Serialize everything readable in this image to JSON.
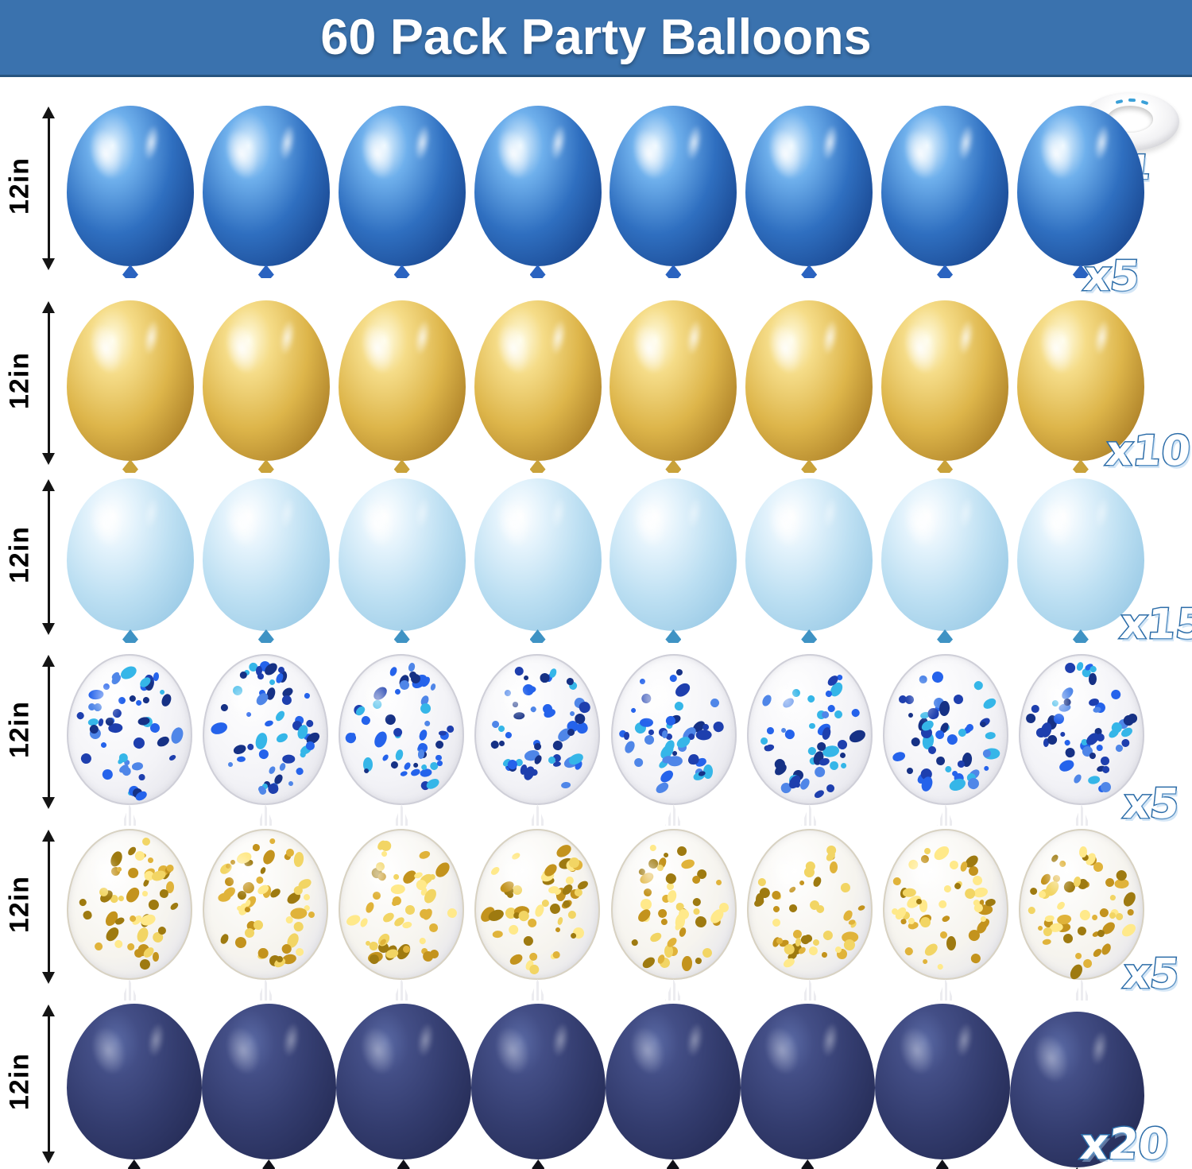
{
  "header": {
    "title": "60 Pack Party Balloons"
  },
  "ribbon_roll": {
    "icon": "white-ribbon-roll-icon",
    "count_label": "x1"
  },
  "rows": [
    {
      "name": "metallic-blue-balloons",
      "style": "metallic-blue",
      "balloon_count": 8,
      "size_label": "12in",
      "count_label": "x5"
    },
    {
      "name": "metallic-gold-balloons",
      "style": "metallic-gold",
      "balloon_count": 8,
      "size_label": "12in",
      "count_label": "x10"
    },
    {
      "name": "pearl-light-blue-balloons",
      "style": "pearl-light-blue",
      "balloon_count": 8,
      "size_label": "12in",
      "count_label": "x15"
    },
    {
      "name": "blue-confetti-balloons",
      "style": "confetti-blue",
      "balloon_count": 8,
      "size_label": "12in",
      "count_label": "x5"
    },
    {
      "name": "gold-confetti-balloons",
      "style": "confetti-gold",
      "balloon_count": 8,
      "size_label": "12in",
      "count_label": "x5"
    },
    {
      "name": "navy-blue-balloons",
      "style": "navy",
      "balloon_count": 8,
      "size_label": "12in",
      "count_label": "x20"
    }
  ],
  "colors": {
    "banner_bg": "#3a72ae",
    "banner_border": "#27547f",
    "banner_text": "#ffffff",
    "count_label_fill": "#ffffff",
    "count_label_stroke": "#2b6ca8",
    "measure_text": "#000000",
    "palettes": {
      "metallic-blue": {
        "light": "#e8f6ff",
        "mid": "#6fb0ec",
        "base": "#2f6fc0",
        "dark": "#1b4a94",
        "deep": "#12356b",
        "knot": "#2a63c0"
      },
      "metallic-gold": {
        "light": "#fffce4",
        "mid": "#f5dc88",
        "base": "#ddb54a",
        "dark": "#b0842a",
        "deep": "#8a6512",
        "knot": "#c9a23a"
      },
      "pearl-light-blue": {
        "light": "#ffffff",
        "mid": "#e4f3fc",
        "base": "#bcdff2",
        "dark": "#9dcce7",
        "deep": "#86bada",
        "knot": "#3f93c4"
      },
      "navy": {
        "light": "#5b6ba6",
        "mid": "#434e86",
        "base": "#333c6e",
        "dark": "#272e59",
        "deep": "#1d2344",
        "knot": "#101018"
      },
      "confetti-blue": {
        "shell": "#f3f3f7",
        "rim": "#cfcfd8",
        "tassel": "#ececf0",
        "dots": [
          "#1e3fae",
          "#2563eb",
          "#4f86e8",
          "#35b6e8",
          "#163185"
        ]
      },
      "confetti-gold": {
        "shell": "#f6f4ee",
        "rim": "#d8d2c2",
        "tassel": "#ececf0",
        "dots": [
          "#c3931d",
          "#e0b33a",
          "#f2d564",
          "#9e7a10",
          "#ffe98a"
        ]
      }
    }
  }
}
